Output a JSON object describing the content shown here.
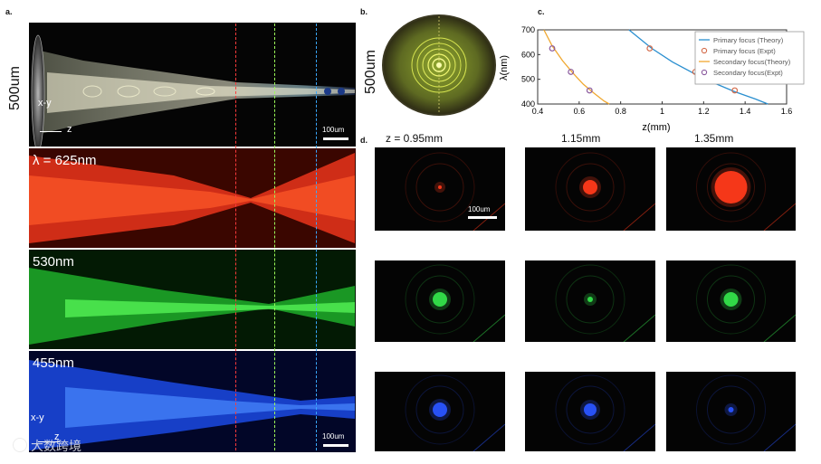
{
  "panel_a": {
    "letter": "a.",
    "side_label": "500um",
    "top_axes": {
      "xy": "x-y",
      "z": "z",
      "scale": "100um"
    },
    "wavelength_labels": [
      "λ = 625nm",
      "530nm",
      "455nm"
    ],
    "bottom_axes": {
      "xy": "x-y",
      "z": "z",
      "scale": "100um"
    }
  },
  "panel_b": {
    "letter": "b.",
    "side_label": "500um"
  },
  "panel_c": {
    "letter": "c."
  },
  "panel_d": {
    "letter": "d.",
    "column_titles": [
      "z = 0.95mm",
      "1.15mm",
      "1.35mm"
    ],
    "scale": "100um",
    "rows": [
      "red",
      "green",
      "blue"
    ],
    "row_colors": [
      "#ff3a1a",
      "#34e04a",
      "#2a54ff"
    ]
  },
  "watermark": "大数跨境",
  "chart_data": {
    "type": "scatter",
    "xlabel": "z(mm)",
    "ylabel": "λ(nm)",
    "xlim": [
      0.4,
      1.6
    ],
    "ylim": [
      400,
      700
    ],
    "xticks": [
      "0.4",
      "0.6",
      "0.8",
      "1",
      "1.2",
      "1.4",
      "1.6"
    ],
    "yticks": [
      "400",
      "500",
      "600",
      "700"
    ],
    "legend_position": "top-right",
    "series": [
      {
        "name": "Primary focus (Theory)",
        "kind": "line",
        "color": "#2a8fd0",
        "x": [
          0.84,
          0.95,
          1.05,
          1.15,
          1.25,
          1.35,
          1.45,
          1.51
        ],
        "y": [
          700,
          625,
          570,
          525,
          485,
          450,
          420,
          400
        ]
      },
      {
        "name": "Primary focus (Expt)",
        "kind": "marker",
        "color": "#d46b4a",
        "x": [
          0.94,
          1.16,
          1.35
        ],
        "y": [
          625,
          530,
          455
        ]
      },
      {
        "name": "Secondary focus(Theory)",
        "kind": "line",
        "color": "#f0a830",
        "x": [
          0.43,
          0.47,
          0.52,
          0.57,
          0.62,
          0.67,
          0.72,
          0.745
        ],
        "y": [
          700,
          635,
          575,
          525,
          480,
          445,
          412,
          400
        ]
      },
      {
        "name": "Secondary focus(Expt)",
        "kind": "marker",
        "color": "#8a5a9e",
        "x": [
          0.47,
          0.56,
          0.65
        ],
        "y": [
          625,
          530,
          455
        ]
      }
    ]
  }
}
